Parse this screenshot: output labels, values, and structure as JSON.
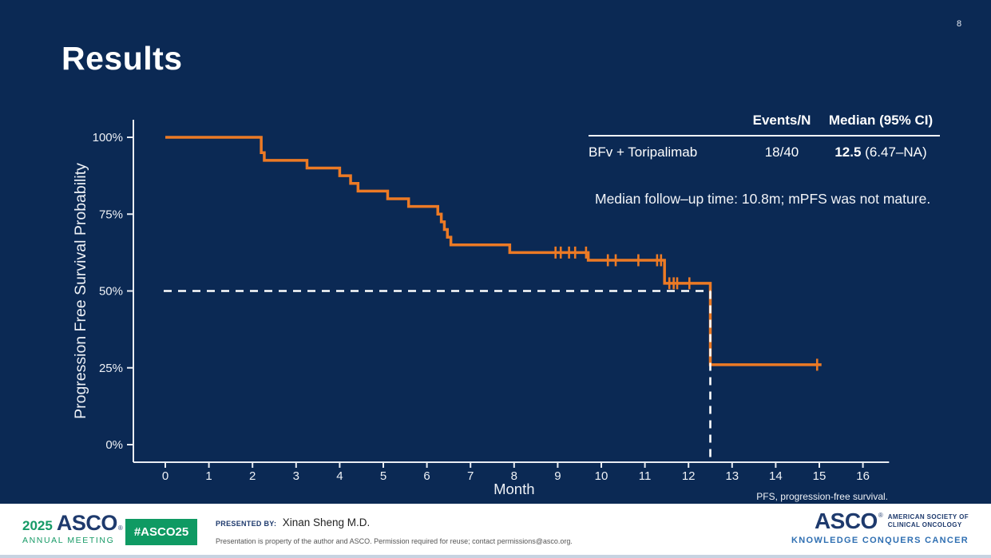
{
  "slide": {
    "page_number": "8",
    "title": "Results",
    "background": "#0b2954",
    "accent": "#ec7a25"
  },
  "annotation": {
    "table": {
      "headers": [
        "Events/N",
        "Median (95% CI)"
      ],
      "row": {
        "label": "BFv + Toripalimab",
        "events_n": "18/40",
        "median": "12.5",
        "ci": " (6.47–NA)"
      }
    },
    "note": "Median follow–up time: 10.8m; mPFS was not mature."
  },
  "footnote": "PFS, progression-free survival.",
  "chart_data": {
    "type": "line",
    "variant": "kaplan-meier-step",
    "title": "",
    "xlabel": "Month",
    "ylabel": "Progression Free Survival Probability",
    "x_ticks": [
      0,
      1,
      2,
      3,
      4,
      5,
      6,
      7,
      8,
      9,
      10,
      11,
      12,
      13,
      14,
      15,
      16
    ],
    "y_ticks": [
      0,
      25,
      50,
      75,
      100
    ],
    "y_tick_suffix": "%",
    "xlim": [
      -0.75,
      16.6
    ],
    "ylim": [
      0,
      100
    ],
    "grid": false,
    "legend_position": "none",
    "axis_color": "#e9ecf2",
    "series": [
      {
        "name": "BFv + Toripalimab",
        "color": "#ec7a25",
        "steps": [
          [
            0,
            100
          ],
          [
            2.2,
            95
          ],
          [
            2.27,
            92.5
          ],
          [
            3.25,
            90
          ],
          [
            4.0,
            87.5
          ],
          [
            4.25,
            85
          ],
          [
            4.42,
            82.5
          ],
          [
            5.1,
            80
          ],
          [
            5.58,
            77.5
          ],
          [
            6.25,
            75
          ],
          [
            6.33,
            72.5
          ],
          [
            6.4,
            70
          ],
          [
            6.47,
            67.5
          ],
          [
            6.55,
            65
          ],
          [
            7.9,
            62.5
          ],
          [
            9.7,
            60
          ],
          [
            11.45,
            52.5
          ],
          [
            12.5,
            26
          ]
        ],
        "end_month": 15.05,
        "censor_marks": [
          [
            8.95,
            62.5
          ],
          [
            9.07,
            62.5
          ],
          [
            9.26,
            62.5
          ],
          [
            9.4,
            62.5
          ],
          [
            9.65,
            62.5
          ],
          [
            10.15,
            60
          ],
          [
            10.33,
            60
          ],
          [
            10.85,
            60
          ],
          [
            11.28,
            60
          ],
          [
            11.37,
            60
          ],
          [
            11.56,
            52.5
          ],
          [
            11.66,
            52.5
          ],
          [
            11.74,
            52.5
          ],
          [
            12.02,
            52.5
          ],
          [
            14.95,
            26
          ]
        ]
      }
    ],
    "reference_lines": {
      "median_h_pct": 50,
      "median_v_month": 12.5,
      "style": "dashed-white"
    }
  },
  "footer": {
    "logo_year": "2025",
    "logo_asco": "ASCO",
    "logo_sub": "ANNUAL MEETING",
    "hashtag": "#ASCO25",
    "presented_by_label": "PRESENTED BY:",
    "presenter": "Xinan Sheng M.D.",
    "disclaimer": "Presentation is property of the author and ASCO. Permission required for reuse; contact permissions@asco.org.",
    "asco_right": {
      "name": "ASCO",
      "line1": "AMERICAN SOCIETY OF",
      "line2": "CLINICAL ONCOLOGY",
      "tagline": "KNOWLEDGE CONQUERS CANCER"
    }
  }
}
